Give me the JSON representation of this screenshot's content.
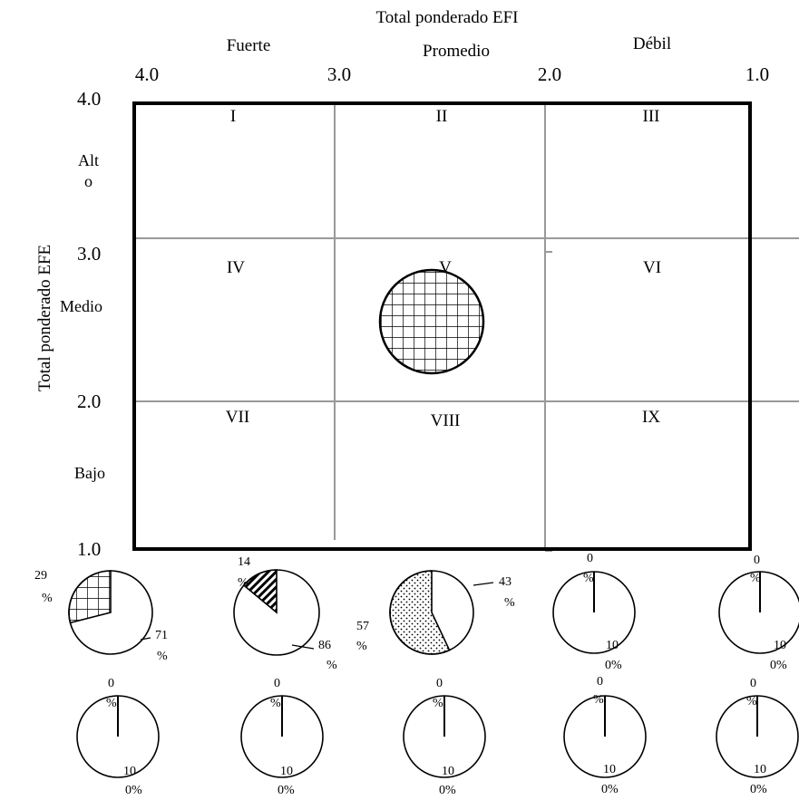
{
  "top_title": "Total ponderado EFI",
  "y_title": "Total ponderado EFE",
  "col_headers": [
    "Fuerte",
    "Promedio",
    "Débil"
  ],
  "x_ticks": [
    "4.0",
    "3.0",
    "2.0",
    "1.0"
  ],
  "y_ticks": [
    "4.0",
    "3.0",
    "2.0",
    "1.0"
  ],
  "row_headers": {
    "alto_line1": "Alt",
    "alto_line2": "o",
    "medio": "Medio",
    "bajo": "Bajo"
  },
  "quadrants": [
    "I",
    "II",
    "III",
    "IV",
    "V",
    "VI",
    "VII",
    "VIII",
    "IX"
  ],
  "pies_row1": [
    {
      "a": "29",
      "a2": "%",
      "b": "71",
      "b2": "%",
      "fraction": 0.29,
      "pattern": "grid"
    },
    {
      "a": "14",
      "a2": "%",
      "b": "86",
      "b2": "%",
      "fraction": 0.14,
      "pattern": "diag"
    },
    {
      "a": "57",
      "a2": "%",
      "b": "43",
      "b2": "%",
      "fraction": 0.57,
      "pattern": "dots"
    },
    {
      "a": "0",
      "a2": "%",
      "b": "10",
      "b2": "0%",
      "fraction": 0,
      "pattern": "none"
    },
    {
      "a": "0",
      "a2": "%",
      "b": "10",
      "b2": "0%",
      "fraction": 0,
      "pattern": "none"
    }
  ],
  "pies_row2": [
    {
      "a": "0",
      "a2": "%",
      "b": "10",
      "b2": "0%",
      "fraction": 0,
      "pattern": "none"
    },
    {
      "a": "0",
      "a2": "%",
      "b": "10",
      "b2": "0%",
      "fraction": 0,
      "pattern": "none"
    },
    {
      "a": "0",
      "a2": "%",
      "b": "10",
      "b2": "0%",
      "fraction": 0,
      "pattern": "none"
    },
    {
      "a": "0",
      "a2": "%",
      "b": "10",
      "b2": "0%",
      "fraction": 0,
      "pattern": "none"
    },
    {
      "a": "0",
      "a2": "%",
      "b": "10",
      "b2": "0%",
      "fraction": 0,
      "pattern": "none"
    }
  ]
}
